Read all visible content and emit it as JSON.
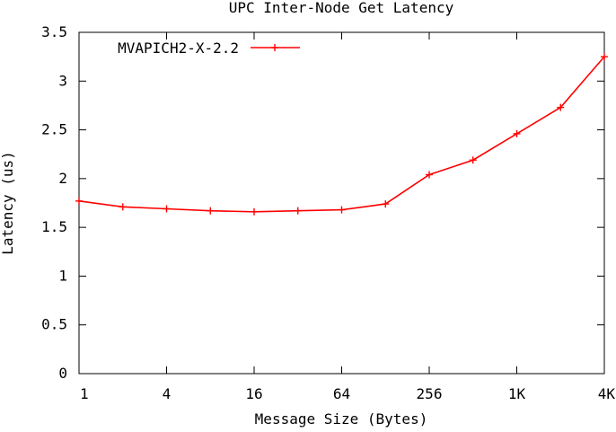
{
  "chart_data": {
    "type": "line",
    "title": "UPC Inter-Node Get Latency",
    "xlabel": "Message Size (Bytes)",
    "ylabel": "Latency (us)",
    "x_scale": "log2",
    "xlim": [
      1,
      4096
    ],
    "ylim": [
      0,
      3.5
    ],
    "x_ticks": [
      {
        "value": 1,
        "label": "1"
      },
      {
        "value": 4,
        "label": "4"
      },
      {
        "value": 16,
        "label": "16"
      },
      {
        "value": 64,
        "label": "64"
      },
      {
        "value": 256,
        "label": "256"
      },
      {
        "value": 1024,
        "label": "1K"
      },
      {
        "value": 4096,
        "label": "4K"
      }
    ],
    "y_ticks": [
      {
        "value": 0,
        "label": "0"
      },
      {
        "value": 0.5,
        "label": "0.5"
      },
      {
        "value": 1,
        "label": "1"
      },
      {
        "value": 1.5,
        "label": "1.5"
      },
      {
        "value": 2,
        "label": "2"
      },
      {
        "value": 2.5,
        "label": "2.5"
      },
      {
        "value": 3,
        "label": "3"
      },
      {
        "value": 3.5,
        "label": "3.5"
      }
    ],
    "grid": false,
    "legend_position": "top-left",
    "x": [
      1,
      2,
      4,
      8,
      16,
      32,
      64,
      128,
      256,
      512,
      1024,
      2048,
      4096
    ],
    "series": [
      {
        "name": "MVAPICH2-X-2.2",
        "color": "#ff0000",
        "marker": "plus",
        "values": [
          1.77,
          1.71,
          1.69,
          1.67,
          1.66,
          1.67,
          1.68,
          1.74,
          2.04,
          2.19,
          2.46,
          2.73,
          3.25
        ]
      }
    ]
  }
}
